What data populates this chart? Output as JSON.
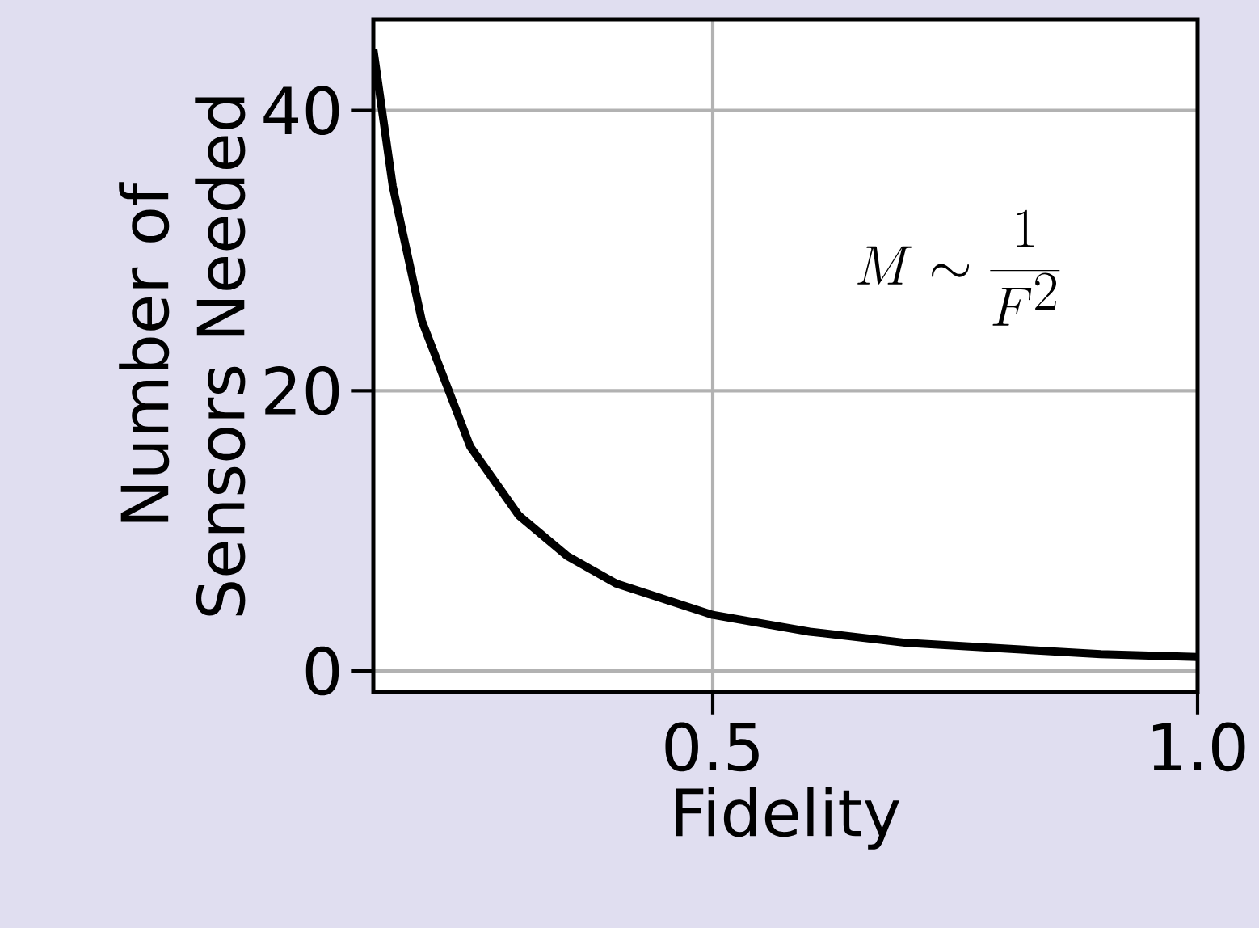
{
  "chart_data": {
    "type": "line",
    "xlabel": "Fidelity",
    "ylabel": "Number of Sensors Needed",
    "annotations": [
      "M \\sim \\frac{1}{F^2}"
    ],
    "x": [
      0.15,
      0.17,
      0.2,
      0.25,
      0.3,
      0.35,
      0.4,
      0.5,
      0.6,
      0.7,
      0.8,
      0.9,
      1.0
    ],
    "values": [
      44.4,
      34.6,
      25,
      16,
      11.1,
      8.2,
      6.25,
      4,
      2.8,
      2.0,
      1.6,
      1.2,
      1.0
    ],
    "color": "#000000",
    "xlim": [
      0.15,
      1.0
    ],
    "ylim": [
      -1.5,
      46.5
    ],
    "xticks": [
      0.5,
      {
        "value": 1.0,
        "label": "1.0"
      }
    ],
    "yticks": [
      0,
      20,
      40
    ],
    "grid": true,
    "marker": "none",
    "line_style": "solid"
  }
}
